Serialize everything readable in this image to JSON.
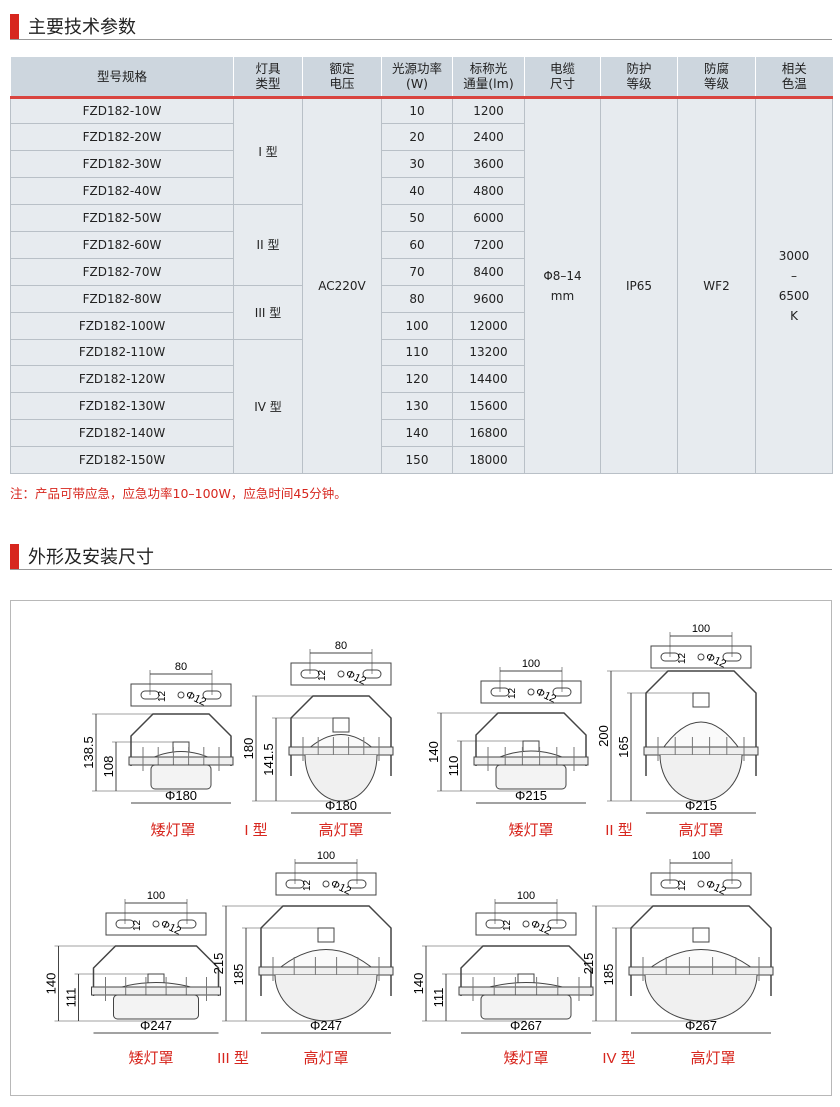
{
  "section1_title": "主要技术参数",
  "table": {
    "headers": [
      "型号规格",
      "灯具\n类型",
      "额定\n电压",
      "光源功率\n(W)",
      "标称光\n通量(lm)",
      "电缆\n尺寸",
      "防护\n等级",
      "防腐\n等级",
      "相关\n色温"
    ],
    "rows": [
      [
        "FZD182-10W",
        "10",
        "1200"
      ],
      [
        "FZD182-20W",
        "20",
        "2400"
      ],
      [
        "FZD182-30W",
        "30",
        "3600"
      ],
      [
        "FZD182-40W",
        "40",
        "4800"
      ],
      [
        "FZD182-50W",
        "50",
        "6000"
      ],
      [
        "FZD182-60W",
        "60",
        "7200"
      ],
      [
        "FZD182-70W",
        "70",
        "8400"
      ],
      [
        "FZD182-80W",
        "80",
        "9600"
      ],
      [
        "FZD182-100W",
        "100",
        "12000"
      ],
      [
        "FZD182-110W",
        "110",
        "13200"
      ],
      [
        "FZD182-120W",
        "120",
        "14400"
      ],
      [
        "FZD182-130W",
        "130",
        "15600"
      ],
      [
        "FZD182-140W",
        "140",
        "16800"
      ],
      [
        "FZD182-150W",
        "150",
        "18000"
      ]
    ],
    "types": [
      "I 型",
      "II 型",
      "III 型",
      "IV 型"
    ],
    "voltage": "AC220V",
    "cable": "Φ8–14\nmm",
    "ip": "IP65",
    "anticorrosion": "WF2",
    "cct": "3000\n–\n6500\nK"
  },
  "note": "注：产品可带应急，应急功率10–100W，应急时间45分钟。",
  "section2_title": "外形及安装尺寸",
  "diagrams": [
    {
      "type_label": "I 型",
      "low": {
        "label": "矮灯罩",
        "slot": "80",
        "hole": "12",
        "phi": "Φ12",
        "outer_h": "138.5",
        "inner_h": "108",
        "diameter": "Φ180"
      },
      "high": {
        "label": "高灯罩",
        "slot": "80",
        "hole": "12",
        "phi": "Φ12",
        "outer_h": "180",
        "inner_h": "141.5",
        "diameter": "Φ180"
      }
    },
    {
      "type_label": "II 型",
      "low": {
        "label": "矮灯罩",
        "slot": "100",
        "hole": "12",
        "phi": "Φ12",
        "outer_h": "140",
        "inner_h": "110",
        "diameter": "Φ215"
      },
      "high": {
        "label": "高灯罩",
        "slot": "100",
        "hole": "12",
        "phi": "Φ12",
        "outer_h": "200",
        "inner_h": "165",
        "diameter": "Φ215"
      }
    },
    {
      "type_label": "III 型",
      "low": {
        "label": "矮灯罩",
        "slot": "100",
        "hole": "12",
        "phi": "Φ12",
        "outer_h": "140",
        "inner_h": "111",
        "diameter": "Φ247"
      },
      "high": {
        "label": "高灯罩",
        "slot": "100",
        "hole": "12",
        "phi": "Φ12",
        "outer_h": "215",
        "inner_h": "185",
        "diameter": "Φ247"
      }
    },
    {
      "type_label": "IV 型",
      "low": {
        "label": "矮灯罩",
        "slot": "100",
        "hole": "12",
        "phi": "Φ12",
        "outer_h": "140",
        "inner_h": "111",
        "diameter": "Φ267"
      },
      "high": {
        "label": "高灯罩",
        "slot": "100",
        "hole": "12",
        "phi": "Φ12",
        "outer_h": "215",
        "inner_h": "185",
        "diameter": "Φ267"
      }
    }
  ],
  "colors": {
    "accent": "#d7261e",
    "header_bg": "#cdd6de",
    "row_bg": "#e7ebef"
  }
}
